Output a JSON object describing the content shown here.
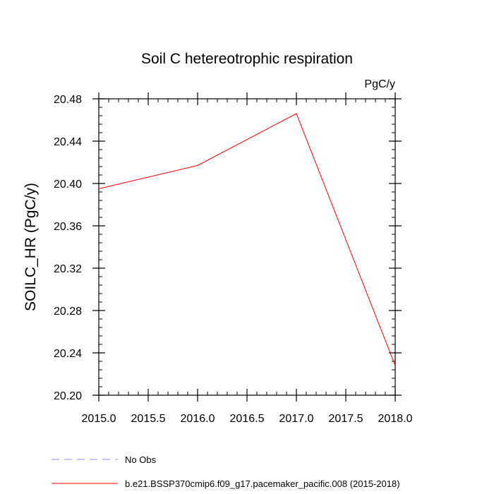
{
  "chart_data": {
    "type": "line",
    "title": "Soil C hetereotrophic respiration",
    "units_label": "PgC/y",
    "xlabel": "",
    "ylabel": "SOILC_HR  (PgC/y)",
    "xlim": [
      2015.0,
      2018.0
    ],
    "ylim": [
      20.2,
      20.48
    ],
    "x_ticks": [
      2015.0,
      2015.5,
      2016.0,
      2016.5,
      2017.0,
      2017.5,
      2018.0
    ],
    "x_tick_labels": [
      "2015.0",
      "2015.5",
      "2016.0",
      "2016.5",
      "2017.0",
      "2017.5",
      "2018.0"
    ],
    "y_ticks": [
      20.2,
      20.24,
      20.28,
      20.32,
      20.36,
      20.4,
      20.44,
      20.48
    ],
    "y_tick_labels": [
      "20.20",
      "20.24",
      "20.28",
      "20.32",
      "20.36",
      "20.40",
      "20.44",
      "20.48"
    ],
    "grid": false,
    "series": [
      {
        "name": "b.e21.BSSP370cmip6.f09_g17.pacemaker_pacific.008 (2015-2018)",
        "color": "#ff0000",
        "dash": "solid",
        "x": [
          2015.0,
          2016.0,
          2017.0,
          2018.0
        ],
        "values": [
          20.395,
          20.417,
          20.466,
          20.228
        ]
      }
    ],
    "legend": [
      {
        "label": "No Obs",
        "color": "#8c8cff",
        "dash": "dashed"
      },
      {
        "label": "b.e21.BSSP370cmip6.f09_g17.pacemaker_pacific.008 (2015-2018)",
        "color": "#ff0000",
        "dash": "solid"
      }
    ],
    "legend_position": "bottom"
  }
}
